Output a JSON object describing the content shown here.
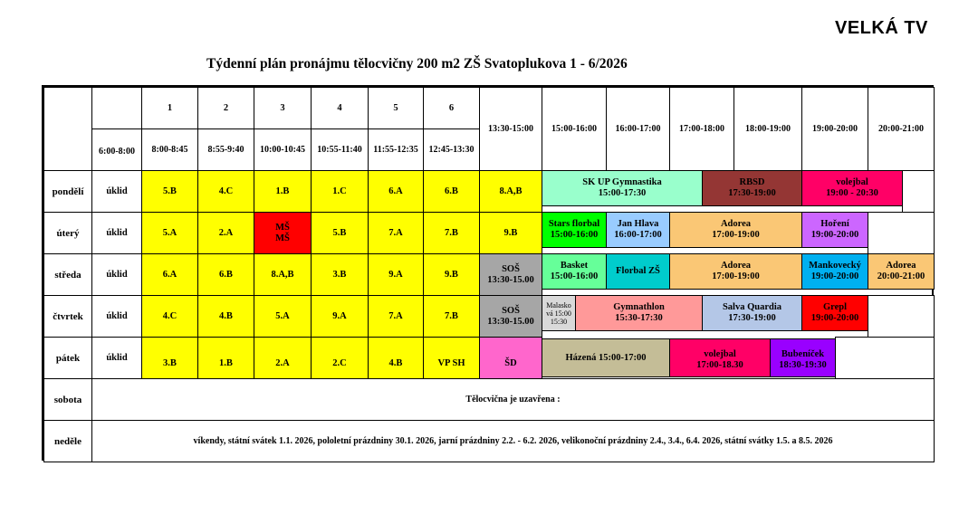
{
  "header": {
    "corner_title": "VELKÁ TV",
    "title": "Týdenní plán pronájmu tělocvičny 200 m2 ZŠ Svatoplukova 1 - 6/2026"
  },
  "colors": {
    "yellow": "#ffff00",
    "red": "#ff0000",
    "grey": "#a6a6a6",
    "mint": "#99ffcc",
    "maroon": "#943634",
    "hot_pink": "#ff0066",
    "green": "#00ff00",
    "light_blue": "#99ccff",
    "orange": "#fac775",
    "lilac": "#cc66ff",
    "light_green": "#66ff99",
    "teal": "#00cccc",
    "cyan": "#00b0f0",
    "salmon": "#ff9999",
    "pale_blue": "#b4c7e7",
    "magenta": "#ff66cc",
    "khaki": "#c4bd97",
    "purple": "#9900ff",
    "light_grey": "#d9d9d9"
  },
  "table": {
    "header_cells": [
      {
        "id": "h-1",
        "lines": [
          "1"
        ]
      },
      {
        "id": "h-2",
        "lines": [
          "2"
        ]
      },
      {
        "id": "h-3",
        "lines": [
          "3"
        ]
      },
      {
        "id": "h-4",
        "lines": [
          "4"
        ]
      },
      {
        "id": "h-5",
        "lines": [
          "5"
        ]
      },
      {
        "id": "h-6",
        "lines": [
          "6"
        ]
      },
      {
        "id": "h-t0",
        "lines": [
          "6:00-8:00"
        ]
      },
      {
        "id": "h-t1",
        "lines": [
          "8:00-8:45"
        ]
      },
      {
        "id": "h-t2",
        "lines": [
          "8:55-9:40"
        ]
      },
      {
        "id": "h-t3",
        "lines": [
          "10:00-10:45"
        ]
      },
      {
        "id": "h-t4",
        "lines": [
          "10:55-11:40"
        ]
      },
      {
        "id": "h-t5",
        "lines": [
          "11:55-12:35"
        ]
      },
      {
        "id": "h-t6",
        "lines": [
          "12:45-13:30"
        ]
      },
      {
        "id": "h-t7",
        "lines": [
          "13:30-15:00"
        ]
      },
      {
        "id": "h-t8",
        "lines": [
          "15:00-16:00"
        ]
      },
      {
        "id": "h-t9",
        "lines": [
          "16:00-17:00"
        ]
      },
      {
        "id": "h-t10",
        "lines": [
          "17:00-18:00"
        ]
      },
      {
        "id": "h-t11",
        "lines": [
          "18:00-19:00"
        ]
      },
      {
        "id": "h-t12",
        "lines": [
          "19:00-20:00"
        ]
      },
      {
        "id": "h-t13",
        "lines": [
          "20:00-21:00"
        ]
      }
    ],
    "rows": [
      {
        "day": "pondělí",
        "cells": [
          {
            "lines": [
              "úklid"
            ]
          },
          {
            "lines": [
              "5.B"
            ],
            "color": "yellow"
          },
          {
            "lines": [
              "4.C"
            ],
            "color": "yellow"
          },
          {
            "lines": [
              "1.B"
            ],
            "color": "yellow"
          },
          {
            "lines": [
              "1.C"
            ],
            "color": "yellow"
          },
          {
            "lines": [
              "6.A"
            ],
            "color": "yellow"
          },
          {
            "lines": [
              "6.B"
            ],
            "color": "yellow"
          },
          {
            "lines": [
              "8.A,B"
            ],
            "color": "yellow"
          },
          {
            "lines": [
              "SK UP Gymnastika",
              "15:00-17:30"
            ],
            "color": "mint"
          },
          {
            "lines": [
              "RBSD",
              "17:30-19:00"
            ],
            "color": "maroon"
          },
          {
            "lines": [
              "volejbal",
              "19:00 - 20:30"
            ],
            "color": "hot_pink"
          },
          {
            "lines": [
              ""
            ]
          }
        ]
      },
      {
        "day": "úterý",
        "cells": [
          {
            "lines": [
              "úklid"
            ]
          },
          {
            "lines": [
              "5.A"
            ],
            "color": "yellow"
          },
          {
            "lines": [
              "2.A"
            ],
            "color": "yellow"
          },
          {
            "lines": [
              "MŠ",
              "MŠ"
            ],
            "color": "red"
          },
          {
            "lines": [
              "5.B"
            ],
            "color": "yellow"
          },
          {
            "lines": [
              "7.A"
            ],
            "color": "yellow"
          },
          {
            "lines": [
              "7.B"
            ],
            "color": "yellow"
          },
          {
            "lines": [
              "9.B"
            ],
            "color": "yellow"
          },
          {
            "lines": [
              "Stars florbal",
              "15:00-16:00"
            ],
            "color": "green"
          },
          {
            "lines": [
              "Jan Hlava",
              "16:00-17:00"
            ],
            "color": "light_blue"
          },
          {
            "lines": [
              "Adorea",
              "17:00-19:00"
            ],
            "color": "orange"
          },
          {
            "lines": [
              "Hoření",
              "19:00-20:00"
            ],
            "color": "lilac"
          },
          {
            "lines": [
              ""
            ]
          }
        ]
      },
      {
        "day": "středa",
        "cells": [
          {
            "lines": [
              "úklid"
            ]
          },
          {
            "lines": [
              "6.A"
            ],
            "color": "yellow"
          },
          {
            "lines": [
              "6.B"
            ],
            "color": "yellow"
          },
          {
            "lines": [
              "8.A,B"
            ],
            "color": "yellow"
          },
          {
            "lines": [
              "3.B"
            ],
            "color": "yellow"
          },
          {
            "lines": [
              "9.A"
            ],
            "color": "yellow"
          },
          {
            "lines": [
              "9.B"
            ],
            "color": "yellow"
          },
          {
            "lines": [
              "SOŠ",
              "13:30-15.00"
            ],
            "color": "grey"
          },
          {
            "lines": [
              "Basket",
              "15:00-16:00"
            ],
            "color": "light_green"
          },
          {
            "lines": [
              "Florbal ZŠ"
            ],
            "color": "teal"
          },
          {
            "lines": [
              "Adorea",
              "17:00-19:00"
            ],
            "color": "orange"
          },
          {
            "lines": [
              "Mankovecký",
              "19:00-20:00"
            ],
            "color": "cyan"
          },
          {
            "lines": [
              "Adorea",
              "20:00-21:00"
            ],
            "color": "orange"
          }
        ]
      },
      {
        "day": "čtvrtek",
        "cells": [
          {
            "lines": [
              "úklid"
            ]
          },
          {
            "lines": [
              "4.C"
            ],
            "color": "yellow"
          },
          {
            "lines": [
              "4.B"
            ],
            "color": "yellow"
          },
          {
            "lines": [
              "5.A"
            ],
            "color": "yellow"
          },
          {
            "lines": [
              "9.A"
            ],
            "color": "yellow"
          },
          {
            "lines": [
              "7.A"
            ],
            "color": "yellow"
          },
          {
            "lines": [
              "7.B"
            ],
            "color": "yellow"
          },
          {
            "lines": [
              "SOŠ",
              "13:30-15.00"
            ],
            "color": "grey"
          },
          {
            "lines": [
              "Malasko",
              "vá 15:00",
              "15:30"
            ],
            "color": "light_grey",
            "small": true
          },
          {
            "lines": [
              "Gymnathlon",
              "15:30-17:30"
            ],
            "color": "salmon"
          },
          {
            "lines": [
              "Salva Quardia",
              "17:30-19:00"
            ],
            "color": "pale_blue"
          },
          {
            "lines": [
              "Grepl",
              "19:00-20:00"
            ],
            "color": "red"
          },
          {
            "lines": [
              ""
            ]
          }
        ]
      },
      {
        "day": "pátek",
        "cells": [
          {
            "lines": [
              "úklid"
            ]
          },
          {
            "lines": [
              "3.B"
            ],
            "color": "yellow"
          },
          {
            "lines": [
              "1.B"
            ],
            "color": "yellow"
          },
          {
            "lines": [
              "2.A"
            ],
            "color": "yellow"
          },
          {
            "lines": [
              "2.C"
            ],
            "color": "yellow"
          },
          {
            "lines": [
              "4.B"
            ],
            "color": "yellow"
          },
          {
            "lines": [
              "VP SH"
            ],
            "color": "yellow"
          },
          {
            "lines": [
              "ŠD"
            ],
            "color": "magenta"
          },
          {
            "lines": [
              "Házená  15:00-17:00"
            ],
            "color": "khaki"
          },
          {
            "lines": [
              "volejbal",
              "17:00-18.30"
            ],
            "color": "hot_pink"
          },
          {
            "lines": [
              "Bubeníček",
              "18:30-19:30"
            ],
            "color": "purple"
          },
          {
            "lines": [
              ""
            ]
          }
        ]
      },
      {
        "day": "sobota",
        "cells": [
          {
            "lines": [
              "Tělocvična je uzavřena :"
            ]
          }
        ]
      },
      {
        "day": "neděle",
        "cells": [
          {
            "lines": [
              "víkendy, státní svátek 1.1. 2026, pololetní prázdniny 30.1. 2026, jarní prázdniny 2.2. - 6.2. 2026, velikonoční prázdniny 2.4., 3.4., 6.4. 2026, státní svátky 1.5. a 8.5. 2026"
            ]
          }
        ]
      }
    ]
  }
}
